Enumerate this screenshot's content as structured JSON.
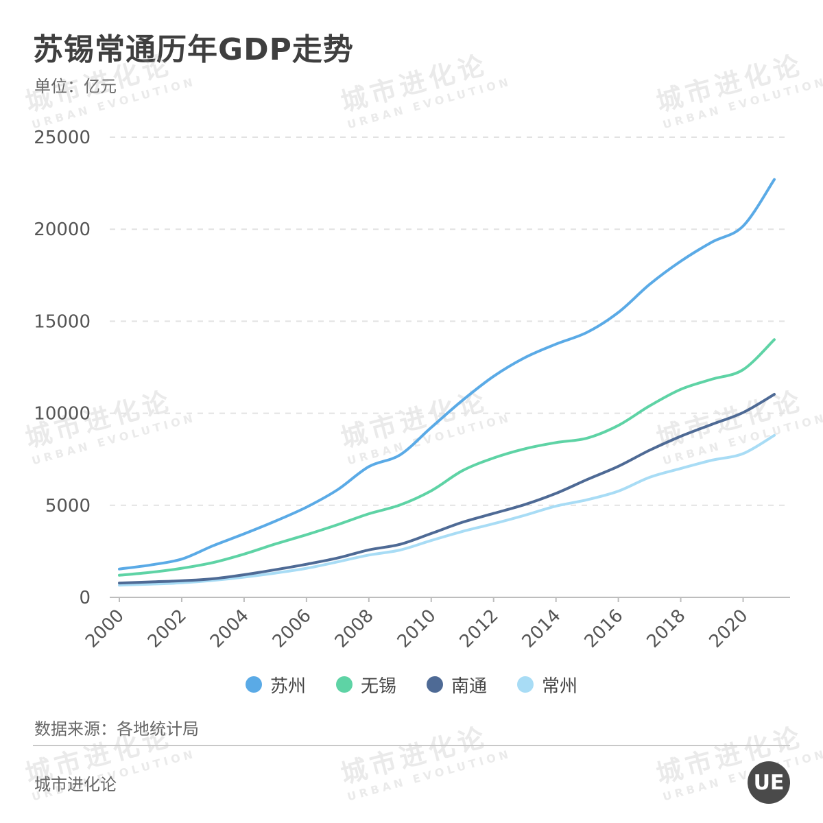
{
  "title": "苏锡常通历年GDP走势",
  "unit": "单位：亿元",
  "source": "数据来源：各地统计局",
  "brand": "城市进化论",
  "logo_text": "UE",
  "watermark": {
    "cn": "城市进化论",
    "en": "URBAN EVOLUTION"
  },
  "chart_data": {
    "type": "line",
    "xlabel": "",
    "ylabel": "",
    "ylim": [
      0,
      25000
    ],
    "yticks": [
      0,
      5000,
      10000,
      15000,
      20000,
      25000
    ],
    "xticks": [
      2000,
      2002,
      2004,
      2006,
      2008,
      2010,
      2012,
      2014,
      2016,
      2018,
      2020
    ],
    "x": [
      2000,
      2001,
      2002,
      2003,
      2004,
      2005,
      2006,
      2007,
      2008,
      2009,
      2010,
      2011,
      2012,
      2013,
      2014,
      2015,
      2016,
      2017,
      2018,
      2019,
      2020,
      2021
    ],
    "grid": true,
    "legend_position": "bottom",
    "series": [
      {
        "name": "苏州",
        "color": "#5aaae6",
        "values": [
          1540,
          1760,
          2080,
          2800,
          3450,
          4140,
          4900,
          5850,
          7100,
          7740,
          9230,
          10700,
          12010,
          13020,
          13760,
          14400,
          15480,
          17000,
          18260,
          19300,
          20170,
          22700
        ]
      },
      {
        "name": "无锡",
        "color": "#5ed3a5",
        "values": [
          1200,
          1360,
          1580,
          1890,
          2350,
          2900,
          3400,
          3950,
          4540,
          5020,
          5790,
          6880,
          7570,
          8070,
          8410,
          8650,
          9340,
          10400,
          11300,
          11850,
          12370,
          14000
        ]
      },
      {
        "name": "南通",
        "color": "#4e6a95",
        "values": [
          780,
          840,
          900,
          1010,
          1230,
          1500,
          1800,
          2140,
          2580,
          2880,
          3470,
          4080,
          4560,
          5040,
          5650,
          6400,
          7120,
          7990,
          8750,
          9400,
          10040,
          11030
        ]
      },
      {
        "name": "常州",
        "color": "#a8dcf5",
        "values": [
          660,
          720,
          790,
          920,
          1100,
          1320,
          1580,
          1930,
          2300,
          2570,
          3090,
          3580,
          4000,
          4460,
          4960,
          5300,
          5770,
          6520,
          7000,
          7450,
          7810,
          8800
        ]
      }
    ]
  }
}
